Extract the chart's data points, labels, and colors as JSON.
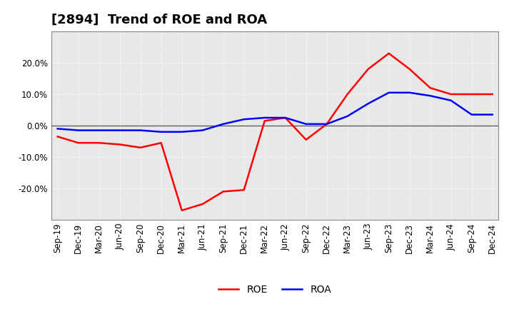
{
  "title": "[2894]  Trend of ROE and ROA",
  "x_labels": [
    "Sep-19",
    "Dec-19",
    "Mar-20",
    "Jun-20",
    "Sep-20",
    "Dec-20",
    "Mar-21",
    "Jun-21",
    "Sep-21",
    "Dec-21",
    "Mar-22",
    "Jun-22",
    "Sep-22",
    "Dec-22",
    "Mar-23",
    "Jun-23",
    "Sep-23",
    "Dec-23",
    "Mar-24",
    "Jun-24",
    "Sep-24",
    "Dec-24"
  ],
  "roe": [
    -3.5,
    -5.5,
    -5.5,
    -6.0,
    -7.0,
    -5.5,
    -27.0,
    -25.0,
    -21.0,
    -20.5,
    1.5,
    2.5,
    -4.5,
    0.5,
    10.0,
    18.0,
    23.0,
    18.0,
    12.0,
    10.0,
    10.0,
    10.0
  ],
  "roa": [
    -1.0,
    -1.5,
    -1.5,
    -1.5,
    -1.5,
    -2.0,
    -2.0,
    -1.5,
    0.5,
    2.0,
    2.5,
    2.5,
    0.5,
    0.5,
    3.0,
    7.0,
    10.5,
    10.5,
    9.5,
    8.0,
    3.5,
    3.5
  ],
  "roe_color": "#ff0000",
  "roa_color": "#0000ff",
  "background_color": "#ffffff",
  "plot_bg_color": "#e8e8e8",
  "grid_color": "#ffffff",
  "zero_line_color": "#555555",
  "ylim": [
    -30,
    30
  ],
  "yticks": [
    -20,
    -10,
    0,
    10,
    20
  ],
  "title_fontsize": 13,
  "legend_fontsize": 10,
  "tick_fontsize": 8.5
}
